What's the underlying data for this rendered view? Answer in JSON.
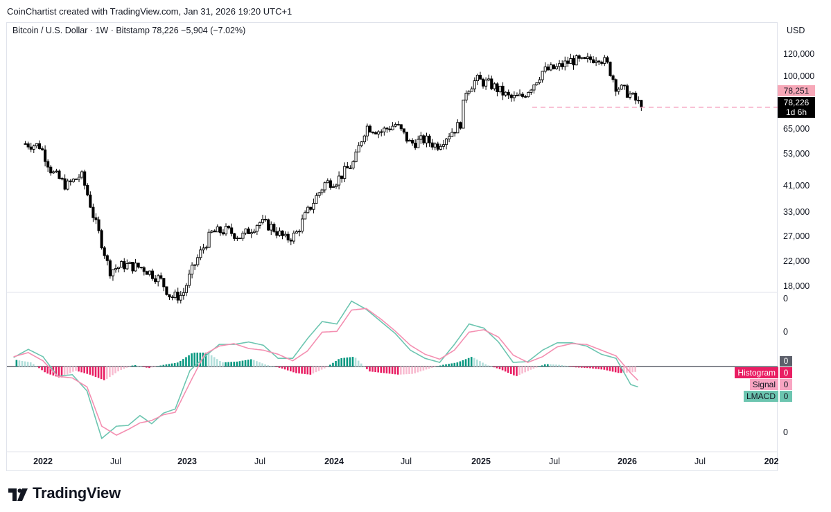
{
  "credit": "CoinChartist created with TradingView.com, Jan 31, 2026 19:20 UTC+1",
  "symbol_line": "Bitcoin / U.S. Dollar · 1W · Bitstamp  78,226  −5,904 (−7.02%)",
  "currency": "USD",
  "last_price_label": "78,251",
  "current_price_label": "78,226",
  "countdown_label": "1d 6h",
  "price_axis_ticks": [
    "120,000",
    "100,000",
    "65,000",
    "53,000",
    "41,000",
    "33,000",
    "27,000",
    "22,000",
    "18,000"
  ],
  "price_axis_values": [
    120000,
    100000,
    65000,
    53000,
    41000,
    33000,
    27000,
    22000,
    18000
  ],
  "macd_axis_ticks": [
    "0",
    "0",
    "0"
  ],
  "macd_zero_label": "0",
  "legend": [
    {
      "name": "Histogram",
      "value": "0",
      "color": "#e91e63",
      "text": "#ffffff"
    },
    {
      "name": "Signal",
      "value": "0",
      "color": "#f8a5c2",
      "text": "#131722"
    },
    {
      "name": "LMACD",
      "value": "0",
      "color": "#6cc5b0",
      "text": "#131722"
    }
  ],
  "x_axis_ticks": [
    {
      "label": "2022",
      "year": true
    },
    {
      "label": "Jul",
      "year": false
    },
    {
      "label": "2023",
      "year": true
    },
    {
      "label": "Jul",
      "year": false
    },
    {
      "label": "2024",
      "year": true
    },
    {
      "label": "Jul",
      "year": false
    },
    {
      "label": "2025",
      "year": true
    },
    {
      "label": "Jul",
      "year": false
    },
    {
      "label": "2026",
      "year": true
    },
    {
      "label": "Jul",
      "year": false
    },
    {
      "label": "202",
      "year": true
    }
  ],
  "brand": "TradingView",
  "colors": {
    "candle": "#000000",
    "lmacd": "#6cc5b0",
    "signal": "#f48fb1",
    "hist_pos_strong": "#089981",
    "hist_pos_weak": "#b2dfdb",
    "hist_neg_strong": "#e91e63",
    "hist_neg_weak": "#f8bbd0",
    "dash": "#f48fb1"
  },
  "chart_data": {
    "type": "candlestick",
    "title": "Bitcoin / U.S. Dollar · 1W · Bitstamp",
    "yscale": "log",
    "ylim": [
      15500,
      150000
    ],
    "xlim": [
      "2021-11",
      "2026-12"
    ],
    "last_close": 78226,
    "change": -5904,
    "change_pct": -7.02,
    "weekly_close_anchors": {
      "time": [
        2021.88,
        2021.98,
        2022.06,
        2022.16,
        2022.26,
        2022.35,
        2022.45,
        2022.55,
        2022.68,
        2022.8,
        2022.87,
        2022.95,
        2023.04,
        2023.15,
        2023.25,
        2023.35,
        2023.47,
        2023.55,
        2023.65,
        2023.72,
        2023.82,
        2023.92,
        2024.0,
        2024.12,
        2024.2,
        2024.3,
        2024.4,
        2024.5,
        2024.6,
        2024.68,
        2024.75,
        2024.84,
        2024.88,
        2024.95,
        2025.05,
        2025.18,
        2025.26,
        2025.34,
        2025.4,
        2025.5,
        2025.6,
        2025.68,
        2025.78,
        2025.84,
        2025.9,
        2025.98,
        2026.08
      ],
      "close": [
        58000,
        57000,
        46000,
        41000,
        45000,
        31000,
        20500,
        21500,
        21000,
        19000,
        16500,
        16800,
        22000,
        28000,
        28500,
        27000,
        30500,
        29500,
        26500,
        27500,
        34500,
        42000,
        43000,
        50000,
        67000,
        64000,
        68000,
        58000,
        60000,
        57000,
        62000,
        68000,
        90000,
        98000,
        94000,
        84000,
        85000,
        95000,
        105000,
        108000,
        115000,
        113000,
        119000,
        111000,
        93000,
        88000,
        78226
      ]
    },
    "indicator": {
      "name": "LMACD",
      "series": [
        "Histogram",
        "Signal",
        "LMACD"
      ],
      "axis_label": "0",
      "lmacd": {
        "time": [
          2021.8,
          2021.9,
          2022.0,
          2022.1,
          2022.2,
          2022.3,
          2022.4,
          2022.5,
          2022.58,
          2022.66,
          2022.74,
          2022.82,
          2022.9,
          2023.0,
          2023.1,
          2023.2,
          2023.3,
          2023.4,
          2023.5,
          2023.6,
          2023.7,
          2023.8,
          2023.9,
          2024.0,
          2024.1,
          2024.2,
          2024.3,
          2024.4,
          2024.5,
          2024.6,
          2024.7,
          2024.8,
          2024.9,
          2025.0,
          2025.1,
          2025.2,
          2025.3,
          2025.4,
          2025.5,
          2025.6,
          2025.7,
          2025.8,
          2025.9,
          2026.0,
          2026.05
        ],
        "value": [
          0.11,
          0.21,
          0.12,
          -0.12,
          -0.1,
          -0.3,
          -0.88,
          -0.73,
          -0.72,
          -0.6,
          -0.7,
          -0.57,
          -0.52,
          -0.05,
          0.12,
          0.27,
          0.27,
          0.3,
          0.26,
          0.1,
          0.1,
          0.34,
          0.55,
          0.52,
          0.8,
          0.7,
          0.55,
          0.4,
          0.2,
          0.1,
          0.05,
          0.27,
          0.52,
          0.47,
          0.3,
          0.05,
          0.06,
          0.2,
          0.29,
          0.29,
          0.25,
          0.15,
          0.1,
          -0.22,
          -0.25
        ]
      },
      "signal": {
        "time": [
          2021.8,
          2021.9,
          2022.0,
          2022.1,
          2022.2,
          2022.3,
          2022.4,
          2022.5,
          2022.58,
          2022.66,
          2022.74,
          2022.82,
          2022.9,
          2023.0,
          2023.1,
          2023.2,
          2023.3,
          2023.4,
          2023.5,
          2023.6,
          2023.7,
          2023.8,
          2023.9,
          2024.0,
          2024.1,
          2024.2,
          2024.3,
          2024.4,
          2024.5,
          2024.6,
          2024.7,
          2024.8,
          2024.9,
          2025.0,
          2025.1,
          2025.2,
          2025.3,
          2025.4,
          2025.5,
          2025.6,
          2025.7,
          2025.8,
          2025.9,
          2026.0,
          2026.05
        ],
        "value": [
          0.12,
          0.17,
          0.07,
          -0.12,
          -0.14,
          -0.25,
          -0.73,
          -0.84,
          -0.77,
          -0.69,
          -0.66,
          -0.59,
          -0.56,
          -0.2,
          0.15,
          0.25,
          0.28,
          0.22,
          0.2,
          0.15,
          0.07,
          0.19,
          0.42,
          0.43,
          0.69,
          0.71,
          0.58,
          0.43,
          0.26,
          0.15,
          0.09,
          0.2,
          0.42,
          0.45,
          0.36,
          0.14,
          0.05,
          0.12,
          0.24,
          0.28,
          0.27,
          0.2,
          0.13,
          -0.08,
          -0.17
        ]
      },
      "histogram": {
        "time": [
          2021.82,
          2021.92,
          2022.02,
          2022.12,
          2022.22,
          2022.32,
          2022.42,
          2022.52,
          2022.62,
          2022.72,
          2022.82,
          2022.92,
          2023.02,
          2023.12,
          2023.22,
          2023.32,
          2023.42,
          2023.52,
          2023.62,
          2023.72,
          2023.82,
          2023.92,
          2024.02,
          2024.12,
          2024.22,
          2024.32,
          2024.42,
          2024.52,
          2024.62,
          2024.72,
          2024.82,
          2024.92,
          2025.02,
          2025.12,
          2025.22,
          2025.32,
          2025.42,
          2025.52,
          2025.62,
          2025.72,
          2025.82,
          2025.92,
          2026.02,
          2026.05
        ],
        "value": [
          0.08,
          0.05,
          -0.08,
          -0.14,
          -0.05,
          -0.1,
          -0.17,
          -0.05,
          0.02,
          -0.02,
          0.02,
          0.05,
          0.17,
          0.17,
          0.05,
          0.06,
          0.09,
          0.02,
          -0.02,
          -0.08,
          -0.1,
          -0.02,
          0.1,
          0.12,
          -0.06,
          -0.08,
          -0.1,
          -0.09,
          -0.03,
          0.02,
          0.05,
          0.12,
          0.02,
          -0.04,
          -0.12,
          -0.04,
          0.03,
          0.02,
          -0.01,
          -0.02,
          -0.04,
          -0.08,
          -0.07,
          -0.06
        ]
      }
    }
  }
}
